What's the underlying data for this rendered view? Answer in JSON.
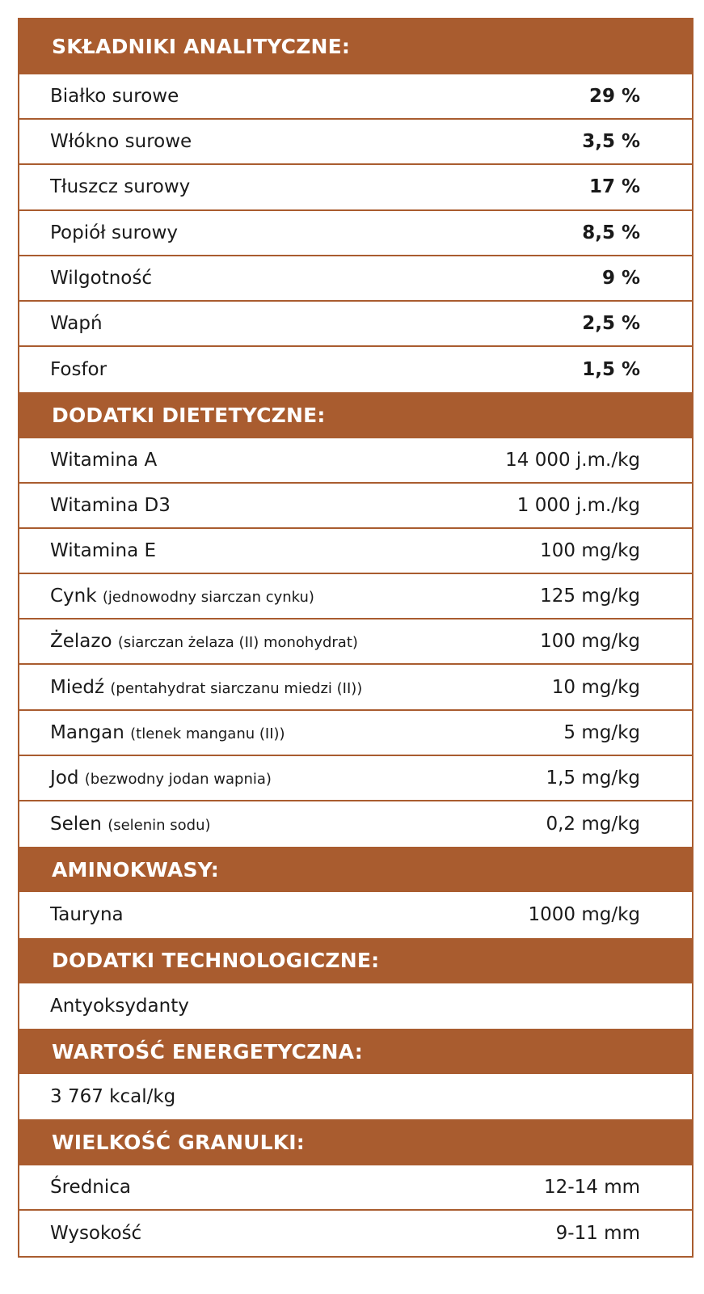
{
  "colors": {
    "accent": "#a95c2f"
  },
  "sections": [
    {
      "title": "SKŁADNIKI ANALITYCZNE:",
      "bold_values": true,
      "rows": [
        {
          "label": "Białko surowe",
          "value": "29 %"
        },
        {
          "label": "Włókno surowe",
          "value": "3,5 %"
        },
        {
          "label": "Tłuszcz surowy",
          "value": "17 %"
        },
        {
          "label": "Popiół surowy",
          "value": "8,5 %"
        },
        {
          "label": "Wilgotność",
          "value": "9 %"
        },
        {
          "label": "Wapń",
          "value": "2,5 %"
        },
        {
          "label": "Fosfor",
          "value": "1,5 %"
        }
      ]
    },
    {
      "title": "DODATKI DIETETYCZNE:",
      "rows": [
        {
          "label": "Witamina A",
          "value": "14 000 j.m./kg"
        },
        {
          "label": "Witamina D3",
          "value": "1 000 j.m./kg"
        },
        {
          "label": "Witamina E",
          "value": "100 mg/kg"
        },
        {
          "label": "Cynk",
          "note": "(jednowodny siarczan cynku)",
          "value": "125 mg/kg"
        },
        {
          "label": "Żelazo",
          "note": "(siarczan żelaza (II) monohydrat)",
          "value": "100 mg/kg"
        },
        {
          "label": "Miedź",
          "note": "(pentahydrat siarczanu miedzi (II))",
          "value": "10 mg/kg"
        },
        {
          "label": "Mangan",
          "note": "(tlenek manganu (II))",
          "value": "5 mg/kg"
        },
        {
          "label": "Jod",
          "note": "(bezwodny jodan wapnia)",
          "value": "1,5 mg/kg"
        },
        {
          "label": "Selen",
          "note": "(selenin sodu)",
          "value": "0,2 mg/kg"
        }
      ]
    },
    {
      "title": "AMINOKWASY:",
      "rows": [
        {
          "label": "Tauryna",
          "value": "1000 mg/kg"
        }
      ]
    },
    {
      "title": "DODATKI TECHNOLOGICZNE:",
      "rows": [
        {
          "label": "Antyoksydanty"
        }
      ]
    },
    {
      "title": "WARTOŚĆ ENERGETYCZNA:",
      "rows": [
        {
          "label": "3 767 kcal/kg"
        }
      ]
    },
    {
      "title": "WIELKOŚĆ GRANULKI:",
      "rows": [
        {
          "label": "Średnica",
          "value": "12-14 mm"
        },
        {
          "label": "Wysokość",
          "value": "9-11 mm"
        }
      ]
    }
  ]
}
